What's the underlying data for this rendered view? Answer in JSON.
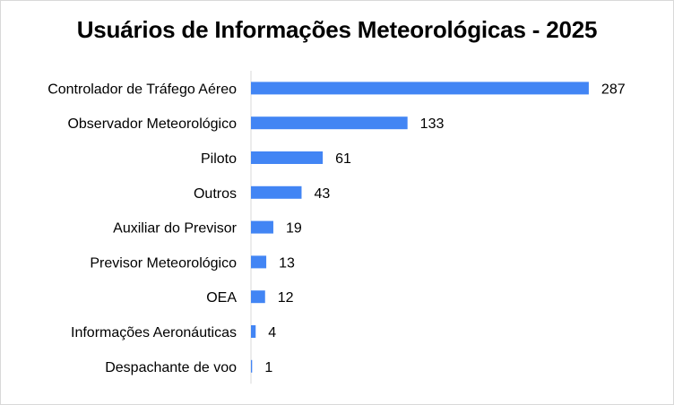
{
  "chart_data": {
    "type": "bar",
    "orientation": "horizontal",
    "title": "Usuários de Informações Meteorológicas - 2025",
    "categories": [
      "Controlador de Tráfego Aéreo",
      "Observador Meteorológico",
      "Piloto",
      "Outros",
      "Auxiliar do Previsor",
      "Previsor Meteorológico",
      "OEA",
      "Informações Aeronáuticas",
      "Despachante de voo"
    ],
    "values": [
      287,
      133,
      61,
      43,
      19,
      13,
      12,
      4,
      1
    ],
    "xlim": [
      0,
      300
    ],
    "data_labels": true,
    "grid": false,
    "legend": "none",
    "bar_color": "#4285f4",
    "axis_color": "#d9d9d9"
  }
}
